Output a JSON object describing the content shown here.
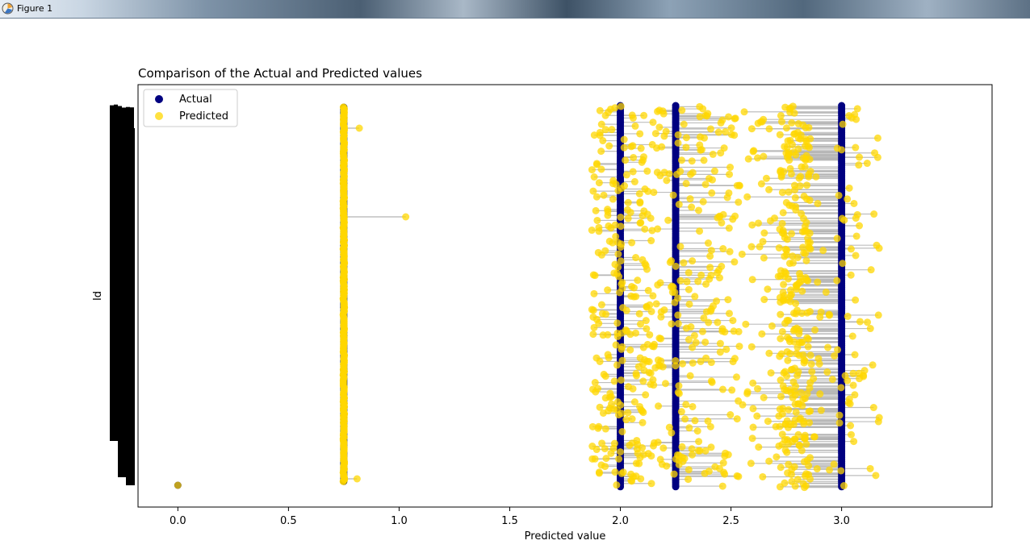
{
  "window": {
    "title": "Figure 1",
    "icon": "matplotlib-figure-icon"
  },
  "chart_data": {
    "type": "scatter",
    "title": "Comparison of the Actual and Predicted values",
    "xlabel": "Predicted value",
    "ylabel": "Id",
    "xlim": [
      -0.18,
      3.68
    ],
    "xticks": [
      0.0,
      0.5,
      1.0,
      1.5,
      2.0,
      2.5,
      3.0
    ],
    "xtick_labels": [
      "0.0",
      "0.5",
      "1.0",
      "1.5",
      "2.0",
      "2.5",
      "3.0"
    ],
    "grid": false,
    "legend_position": "upper-left",
    "colors": {
      "actual": "#000080",
      "predicted": "#ffd700",
      "connector": "#b3b3b3"
    },
    "series": [
      {
        "name": "Actual",
        "marker": "circle",
        "color": "#000080",
        "values_x_levels": [
          0.0,
          0.75,
          2.0,
          2.25,
          3.0
        ]
      },
      {
        "name": "Predicted",
        "marker": "circle",
        "color": "#ffd700"
      }
    ],
    "level_bands": [
      {
        "actual": 0.75,
        "predicted_range": [
          0.74,
          1.03
        ],
        "outliers": [
          0.82,
          1.03,
          0.81
        ]
      },
      {
        "actual": 2.0,
        "predicted_range": [
          1.87,
          2.15
        ]
      },
      {
        "actual": 2.25,
        "predicted_range": [
          2.15,
          2.55
        ]
      },
      {
        "actual": 3.0,
        "predicted_range": [
          2.55,
          3.17
        ]
      }
    ],
    "point_count_estimate": 1300
  }
}
